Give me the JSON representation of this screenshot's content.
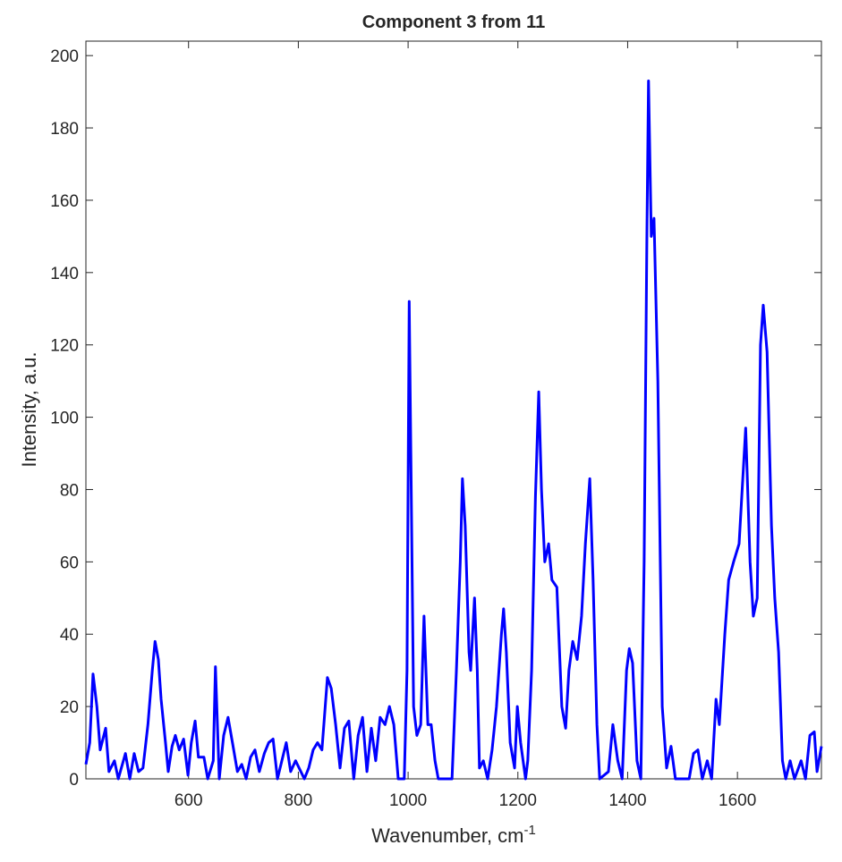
{
  "chart_data": {
    "type": "line",
    "title": "Component 3 from 11",
    "xlabel": {
      "text": "Wavenumber, cm",
      "superscript": "-1"
    },
    "ylabel": "Intensity, a.u.",
    "xlim": [
      413,
      1753
    ],
    "ylim": [
      0,
      204
    ],
    "xticks": [
      600,
      800,
      1000,
      1200,
      1400,
      1600
    ],
    "yticks": [
      0,
      20,
      40,
      60,
      80,
      100,
      120,
      140,
      160,
      180,
      200
    ],
    "grid": false,
    "x": [
      413,
      420,
      426,
      433,
      439,
      449,
      455,
      465,
      472,
      485,
      493,
      501,
      509,
      517,
      526,
      534,
      539,
      545,
      550,
      558,
      563,
      570,
      576,
      583,
      591,
      599,
      605,
      612,
      618,
      628,
      635,
      645,
      649,
      656,
      664,
      672,
      680,
      689,
      697,
      705,
      713,
      721,
      729,
      738,
      746,
      754,
      762,
      770,
      778,
      786,
      795,
      811,
      819,
      827,
      835,
      843,
      853,
      860,
      868,
      876,
      884,
      892,
      901,
      909,
      917,
      925,
      933,
      941,
      949,
      958,
      966,
      974,
      982,
      993,
      998,
      1002,
      1005,
      1010,
      1016,
      1023,
      1029,
      1036,
      1042,
      1049,
      1055,
      1080,
      1088,
      1095,
      1099,
      1104,
      1111,
      1114,
      1121,
      1126,
      1130,
      1137,
      1145,
      1153,
      1161,
      1170,
      1174,
      1179,
      1186,
      1194,
      1199,
      1205,
      1214,
      1218,
      1225,
      1232,
      1238,
      1243,
      1249,
      1256,
      1262,
      1271,
      1280,
      1287,
      1293,
      1300,
      1308,
      1316,
      1323,
      1331,
      1337,
      1344,
      1349,
      1365,
      1373,
      1382,
      1390,
      1398,
      1403,
      1409,
      1417,
      1424,
      1430,
      1435,
      1438,
      1443,
      1448,
      1455,
      1463,
      1471,
      1479,
      1487,
      1512,
      1520,
      1528,
      1536,
      1545,
      1553,
      1561,
      1567,
      1577,
      1584,
      1593,
      1603,
      1615,
      1623,
      1629,
      1636,
      1642,
      1647,
      1654,
      1662,
      1668,
      1675,
      1682,
      1688,
      1696,
      1704,
      1716,
      1724,
      1732,
      1740,
      1745,
      1753
    ],
    "series": [
      {
        "color": "#0000ff",
        "values": [
          4,
          10,
          29,
          20,
          8,
          14,
          2,
          5,
          0,
          7,
          0,
          7,
          2,
          3,
          15,
          30,
          38,
          33,
          22,
          10,
          2,
          9,
          12,
          8,
          11,
          1,
          10,
          16,
          6,
          6,
          0,
          5,
          31,
          0,
          12,
          17,
          10,
          2,
          4,
          0,
          6,
          8,
          2,
          7,
          10,
          11,
          0,
          5,
          10,
          2,
          5,
          0,
          3,
          8,
          10,
          8,
          28,
          25,
          15,
          3,
          14,
          16,
          0,
          12,
          17,
          2,
          14,
          5,
          17,
          15,
          20,
          15,
          0,
          0,
          30,
          132,
          90,
          20,
          12,
          15,
          45,
          15,
          15,
          5,
          0,
          0,
          30,
          60,
          83,
          70,
          35,
          30,
          50,
          30,
          3,
          5,
          0,
          8,
          20,
          40,
          47,
          35,
          10,
          3,
          20,
          10,
          0,
          5,
          30,
          78,
          107,
          80,
          60,
          65,
          55,
          53,
          20,
          14,
          30,
          38,
          33,
          45,
          65,
          83,
          55,
          15,
          0,
          2,
          15,
          5,
          0,
          30,
          36,
          32,
          5,
          0,
          60,
          150,
          193,
          150,
          155,
          110,
          20,
          3,
          9,
          0,
          0,
          7,
          8,
          0,
          5,
          0,
          22,
          15,
          40,
          55,
          60,
          65,
          97,
          60,
          45,
          50,
          120,
          131,
          118,
          70,
          50,
          35,
          5,
          0,
          5,
          0,
          5,
          0,
          12,
          13,
          2,
          9
        ]
      }
    ]
  }
}
